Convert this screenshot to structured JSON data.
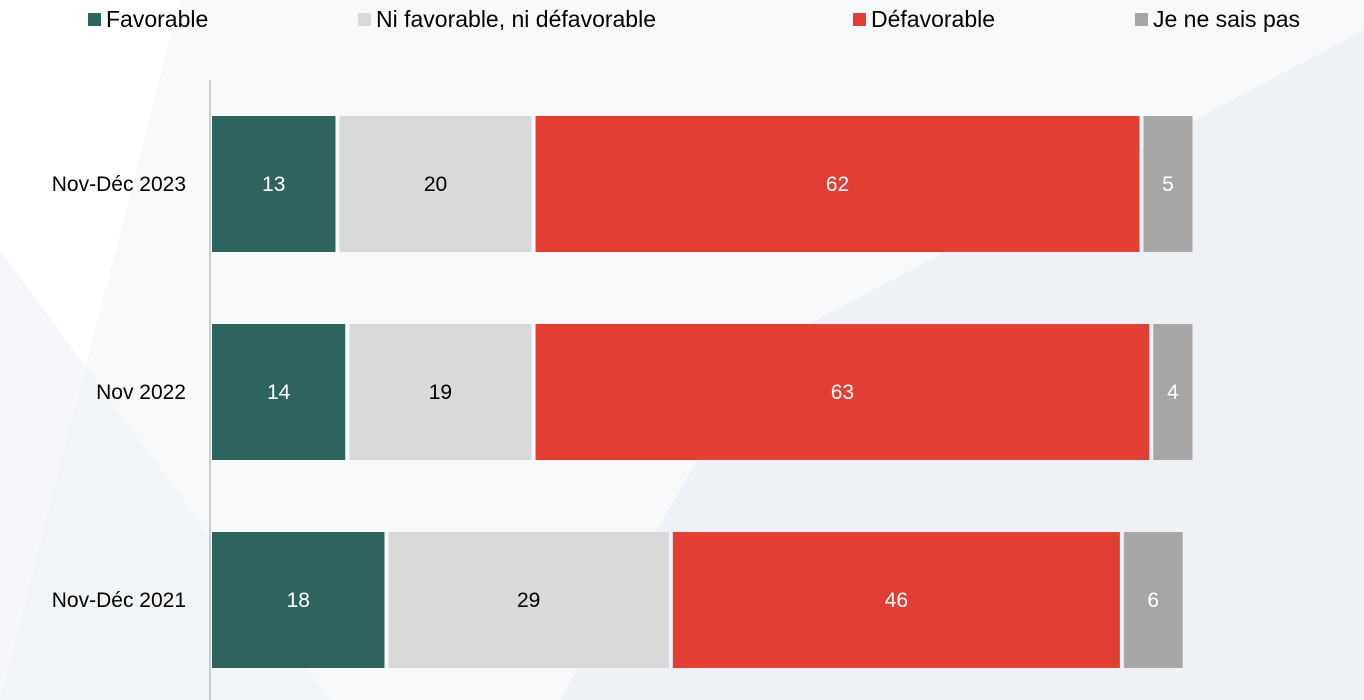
{
  "chart_data": {
    "type": "bar",
    "orientation": "horizontal",
    "stacked": true,
    "title": "",
    "xlabel": "",
    "ylabel": "",
    "legend_position": "top",
    "grid": false,
    "xlim": [
      0,
      100
    ],
    "categories": [
      "Nov-Déc 2023",
      "Nov 2022",
      "Nov-Déc 2021"
    ],
    "series": [
      {
        "name": "Favorable",
        "color": "#2e635e",
        "label_color": "#ffffff",
        "values": [
          13,
          14,
          18
        ]
      },
      {
        "name": "Ni favorable, ni défavorable",
        "color": "#d9d9d9",
        "label_color": "#000000",
        "values": [
          20,
          19,
          29
        ]
      },
      {
        "name": "Défavorable",
        "color": "#e23e33",
        "label_color": "#ffffff",
        "values": [
          62,
          63,
          46
        ]
      },
      {
        "name": "Je ne sais pas",
        "color": "#a6a6a6",
        "label_color": "#ffffff",
        "values": [
          5,
          4,
          6
        ]
      }
    ]
  }
}
